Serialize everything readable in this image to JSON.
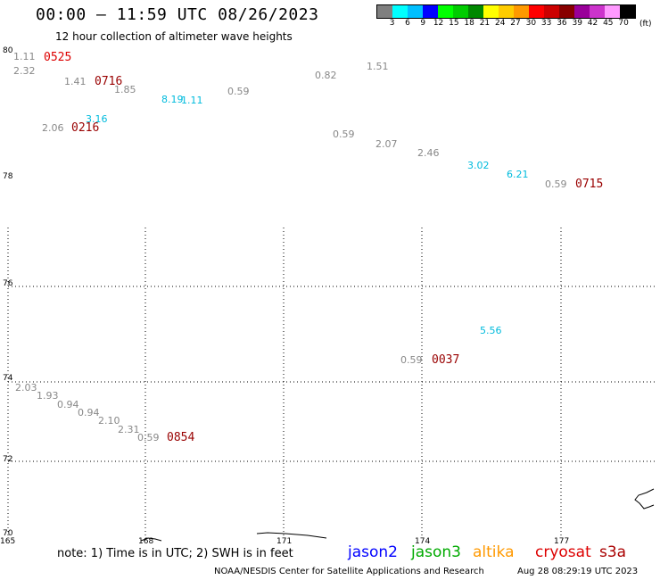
{
  "header": {
    "title": "00:00 — 11:59 UTC 08/26/2023",
    "subtitle": "12 hour collection of altimeter wave heights"
  },
  "legend": {
    "ticks": [
      "3",
      "6",
      "9",
      "12",
      "15",
      "18",
      "21",
      "24",
      "27",
      "30",
      "33",
      "36",
      "39",
      "42",
      "45",
      "70"
    ],
    "unit": "(ft)",
    "colors": [
      "#7f7f7f",
      "#00ffff",
      "#00bfff",
      "#0000ff",
      "#00ff00",
      "#00cc00",
      "#008800",
      "#ffff00",
      "#ffcc00",
      "#ff9900",
      "#ff0000",
      "#cc0000",
      "#880000",
      "#990099",
      "#cc33cc",
      "#ff99ff",
      "#000000"
    ]
  },
  "axes": {
    "lat_labels": [
      "80",
      "78",
      "76",
      "74",
      "72",
      "70"
    ],
    "lon_labels": [
      "165",
      "168",
      "171",
      "174",
      "177"
    ]
  },
  "observations": [
    {
      "text": "1.11",
      "color": "#888888"
    },
    {
      "text": "0525",
      "color": "#dd0000"
    },
    {
      "text": "2.32",
      "color": "#888888"
    },
    {
      "text": "1.41",
      "color": "#888888"
    },
    {
      "text": "0716",
      "color": "#990000"
    },
    {
      "text": "1.85",
      "color": "#888888"
    },
    {
      "text": "8.19",
      "color": "#00bbdd"
    },
    {
      "text": "1.11",
      "color": "#00bbdd"
    },
    {
      "text": "0.59",
      "color": "#888888"
    },
    {
      "text": "3.16",
      "color": "#00bbdd"
    },
    {
      "text": "2.06",
      "color": "#888888"
    },
    {
      "text": "0216",
      "color": "#990000"
    },
    {
      "text": "0.82",
      "color": "#888888"
    },
    {
      "text": "1.51",
      "color": "#888888"
    },
    {
      "text": "0.59",
      "color": "#888888"
    },
    {
      "text": "2.07",
      "color": "#888888"
    },
    {
      "text": "2.46",
      "color": "#888888"
    },
    {
      "text": "3.02",
      "color": "#00bbdd"
    },
    {
      "text": "6.21",
      "color": "#00bbdd"
    },
    {
      "text": "0.59",
      "color": "#888888"
    },
    {
      "text": "0715",
      "color": "#990000"
    },
    {
      "text": "5.56",
      "color": "#00bbdd"
    },
    {
      "text": "0.59",
      "color": "#888888"
    },
    {
      "text": "0037",
      "color": "#990000"
    },
    {
      "text": "2.03",
      "color": "#888888"
    },
    {
      "text": "1.93",
      "color": "#888888"
    },
    {
      "text": "0.94",
      "color": "#888888"
    },
    {
      "text": "0.94",
      "color": "#888888"
    },
    {
      "text": "2.10",
      "color": "#888888"
    },
    {
      "text": "2.31",
      "color": "#888888"
    },
    {
      "text": "0.59",
      "color": "#888888"
    },
    {
      "text": "0854",
      "color": "#990000"
    }
  ],
  "footer": {
    "note": "note: 1) Time is in UTC; 2) SWH is in feet",
    "satellites": [
      {
        "name": "jason2",
        "color": "#0000ff"
      },
      {
        "name": "jason3",
        "color": "#00aa00"
      },
      {
        "name": "altika",
        "color": "#ff9900"
      },
      {
        "name": "cryosat",
        "color": "#dd0000"
      },
      {
        "name": "s3a",
        "color": "#aa0000"
      }
    ],
    "credit": "NOAA/NESDIS Center for Satellite Applications and Research",
    "timestamp": "Aug 28 08:29:19 UTC 2023"
  }
}
